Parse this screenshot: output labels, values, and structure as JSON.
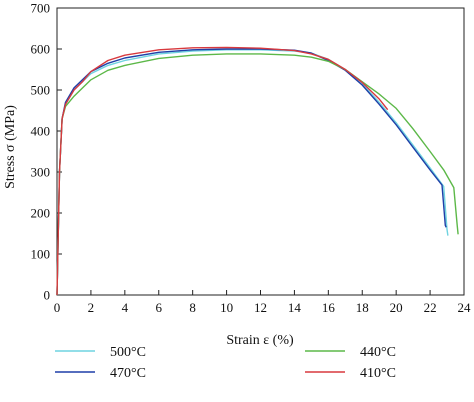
{
  "chart_data": {
    "type": "line",
    "title": "",
    "xlabel": "Strain ε (%)",
    "ylabel": "Stress σ (MPa)",
    "xlim": [
      0,
      24
    ],
    "ylim": [
      0,
      700
    ],
    "x_ticks": [
      0,
      2,
      4,
      6,
      8,
      10,
      12,
      14,
      16,
      18,
      20,
      22,
      24
    ],
    "y_ticks": [
      0,
      100,
      200,
      300,
      400,
      500,
      600,
      700
    ],
    "grid": false,
    "legend_position": "bottom",
    "series": [
      {
        "name": "500°C",
        "color": "#6fd3e0",
        "points": [
          [
            0,
            0
          ],
          [
            0.15,
            300
          ],
          [
            0.3,
            430
          ],
          [
            0.5,
            465
          ],
          [
            1,
            500
          ],
          [
            2,
            540
          ],
          [
            3,
            560
          ],
          [
            4,
            572
          ],
          [
            6,
            588
          ],
          [
            8,
            595
          ],
          [
            10,
            598
          ],
          [
            12,
            598
          ],
          [
            14,
            595
          ],
          [
            15,
            590
          ],
          [
            16,
            575
          ],
          [
            17,
            550
          ],
          [
            18,
            515
          ],
          [
            19,
            470
          ],
          [
            20,
            420
          ],
          [
            21,
            365
          ],
          [
            22,
            310
          ],
          [
            22.8,
            265
          ],
          [
            23.0,
            160
          ],
          [
            23.05,
            145
          ]
        ]
      },
      {
        "name": "470°C",
        "color": "#1f3fa8",
        "points": [
          [
            0,
            0
          ],
          [
            0.15,
            300
          ],
          [
            0.3,
            430
          ],
          [
            0.5,
            470
          ],
          [
            1,
            505
          ],
          [
            2,
            545
          ],
          [
            3,
            565
          ],
          [
            4,
            578
          ],
          [
            6,
            592
          ],
          [
            8,
            598
          ],
          [
            10,
            600
          ],
          [
            12,
            600
          ],
          [
            14,
            597
          ],
          [
            15,
            590
          ],
          [
            16,
            572
          ],
          [
            17,
            548
          ],
          [
            18,
            512
          ],
          [
            19,
            465
          ],
          [
            20,
            415
          ],
          [
            21,
            360
          ],
          [
            22,
            305
          ],
          [
            22.7,
            268
          ],
          [
            22.9,
            170
          ],
          [
            22.95,
            165
          ]
        ]
      },
      {
        "name": "440°C",
        "color": "#5cb848",
        "points": [
          [
            0,
            0
          ],
          [
            0.15,
            300
          ],
          [
            0.3,
            430
          ],
          [
            0.5,
            460
          ],
          [
            1,
            485
          ],
          [
            2,
            525
          ],
          [
            3,
            548
          ],
          [
            4,
            560
          ],
          [
            6,
            577
          ],
          [
            8,
            585
          ],
          [
            10,
            588
          ],
          [
            12,
            588
          ],
          [
            14,
            585
          ],
          [
            15,
            580
          ],
          [
            16,
            570
          ],
          [
            17,
            550
          ],
          [
            18,
            520
          ],
          [
            19,
            490
          ],
          [
            20,
            455
          ],
          [
            21,
            405
          ],
          [
            22,
            350
          ],
          [
            22.8,
            305
          ],
          [
            23.4,
            262
          ],
          [
            23.6,
            170
          ],
          [
            23.65,
            148
          ]
        ]
      },
      {
        "name": "410°C",
        "color": "#d8393e",
        "points": [
          [
            0,
            0
          ],
          [
            0.15,
            300
          ],
          [
            0.3,
            430
          ],
          [
            0.5,
            465
          ],
          [
            1,
            500
          ],
          [
            1.5,
            520
          ],
          [
            2,
            545
          ],
          [
            3,
            572
          ],
          [
            4,
            585
          ],
          [
            6,
            598
          ],
          [
            8,
            603
          ],
          [
            10,
            604
          ],
          [
            12,
            602
          ],
          [
            14,
            596
          ],
          [
            15,
            588
          ],
          [
            16,
            575
          ],
          [
            17,
            550
          ],
          [
            18,
            518
          ],
          [
            19,
            478
          ],
          [
            19.5,
            452
          ]
        ]
      }
    ]
  }
}
